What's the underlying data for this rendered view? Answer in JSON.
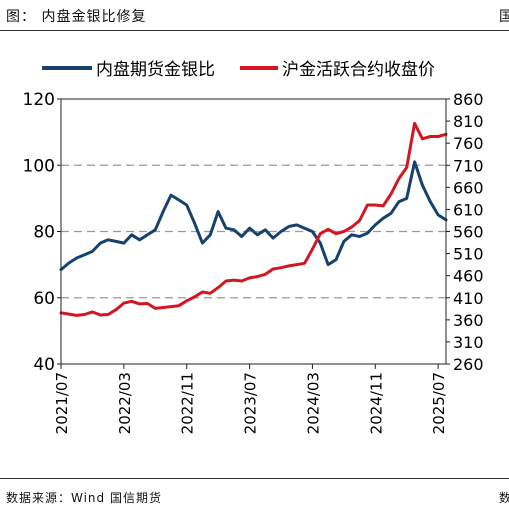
{
  "header": {
    "title": "图： 内盘金银比修复",
    "right_mark": "国"
  },
  "footer": {
    "source": "数据来源：Wind 国信期货",
    "right_mark": "数"
  },
  "colors": {
    "left_series": "#17416e",
    "right_series": "#d41620",
    "grid": "#999999"
  },
  "chart_data": {
    "type": "line",
    "x_tick_labels": [
      "2021/07",
      "2022/03",
      "2022/11",
      "2023/07",
      "2024/03",
      "2024/11",
      "2025/07"
    ],
    "x_range": [
      "2021-07",
      "2025-08"
    ],
    "left_axis": {
      "range": [
        40,
        120
      ],
      "ticks": [
        40,
        60,
        80,
        100,
        120
      ]
    },
    "right_axis": {
      "range": [
        260,
        860
      ],
      "ticks": [
        260,
        310,
        360,
        410,
        460,
        510,
        560,
        610,
        660,
        710,
        760,
        810,
        860
      ]
    },
    "grid": "horizontal dashed",
    "legend_position": "top",
    "series": [
      {
        "name": "内盘期货金银比",
        "axis": "left",
        "points": [
          [
            "2021-07",
            68.5
          ],
          [
            "2021-08",
            70.5
          ],
          [
            "2021-09",
            72
          ],
          [
            "2021-10",
            73
          ],
          [
            "2021-11",
            74
          ],
          [
            "2021-12",
            76.5
          ],
          [
            "2022-01",
            77.5
          ],
          [
            "2022-02",
            77
          ],
          [
            "2022-03",
            76.5
          ],
          [
            "2022-04",
            79
          ],
          [
            "2022-05",
            77.5
          ],
          [
            "2022-06",
            79
          ],
          [
            "2022-07",
            80.5
          ],
          [
            "2022-08",
            86
          ],
          [
            "2022-09",
            91
          ],
          [
            "2022-10",
            89.5
          ],
          [
            "2022-11",
            88
          ],
          [
            "2022-12",
            82.5
          ],
          [
            "2023-01",
            76.5
          ],
          [
            "2023-02",
            79
          ],
          [
            "2023-03",
            86
          ],
          [
            "2023-04",
            81
          ],
          [
            "2023-05",
            80.5
          ],
          [
            "2023-06",
            78.5
          ],
          [
            "2023-07",
            81
          ],
          [
            "2023-08",
            79
          ],
          [
            "2023-09",
            80.5
          ],
          [
            "2023-10",
            78
          ],
          [
            "2023-11",
            80
          ],
          [
            "2023-12",
            81.5
          ],
          [
            "2024-01",
            82
          ],
          [
            "2024-02",
            81
          ],
          [
            "2024-03",
            80
          ],
          [
            "2024-04",
            76.5
          ],
          [
            "2024-05",
            70
          ],
          [
            "2024-06",
            71.5
          ],
          [
            "2024-07",
            77
          ],
          [
            "2024-08",
            79
          ],
          [
            "2024-09",
            78.5
          ],
          [
            "2024-10",
            79.5
          ],
          [
            "2024-11",
            82
          ],
          [
            "2024-12",
            84
          ],
          [
            "2025-01",
            85.5
          ],
          [
            "2025-02",
            89
          ],
          [
            "2025-03",
            90
          ],
          [
            "2025-04",
            101
          ],
          [
            "2025-05",
            94
          ],
          [
            "2025-06",
            89
          ],
          [
            "2025-07",
            85
          ],
          [
            "2025-08",
            83.5
          ]
        ]
      },
      {
        "name": "沪金活跃合约收盘价",
        "axis": "right",
        "points": [
          [
            "2021-07",
            376
          ],
          [
            "2021-08",
            373
          ],
          [
            "2021-09",
            370
          ],
          [
            "2021-10",
            372
          ],
          [
            "2021-11",
            378
          ],
          [
            "2021-12",
            371
          ],
          [
            "2022-01",
            372
          ],
          [
            "2022-02",
            383
          ],
          [
            "2022-03",
            398
          ],
          [
            "2022-04",
            402
          ],
          [
            "2022-05",
            396
          ],
          [
            "2022-06",
            397
          ],
          [
            "2022-07",
            386
          ],
          [
            "2022-08",
            388
          ],
          [
            "2022-09",
            390
          ],
          [
            "2022-10",
            392
          ],
          [
            "2022-11",
            403
          ],
          [
            "2022-12",
            412
          ],
          [
            "2023-01",
            423
          ],
          [
            "2023-02",
            420
          ],
          [
            "2023-03",
            433
          ],
          [
            "2023-04",
            448
          ],
          [
            "2023-05",
            450
          ],
          [
            "2023-06",
            448
          ],
          [
            "2023-07",
            455
          ],
          [
            "2023-08",
            458
          ],
          [
            "2023-09",
            463
          ],
          [
            "2023-10",
            475
          ],
          [
            "2023-11",
            478
          ],
          [
            "2023-12",
            482
          ],
          [
            "2024-01",
            485
          ],
          [
            "2024-02",
            488
          ],
          [
            "2024-03",
            520
          ],
          [
            "2024-04",
            555
          ],
          [
            "2024-05",
            565
          ],
          [
            "2024-06",
            555
          ],
          [
            "2024-07",
            560
          ],
          [
            "2024-08",
            570
          ],
          [
            "2024-09",
            585
          ],
          [
            "2024-10",
            620
          ],
          [
            "2024-11",
            620
          ],
          [
            "2024-12",
            618
          ],
          [
            "2025-01",
            645
          ],
          [
            "2025-02",
            680
          ],
          [
            "2025-03",
            705
          ],
          [
            "2025-04",
            805
          ],
          [
            "2025-05",
            770
          ],
          [
            "2025-06",
            775
          ],
          [
            "2025-07",
            775
          ],
          [
            "2025-08",
            780
          ]
        ]
      }
    ]
  }
}
